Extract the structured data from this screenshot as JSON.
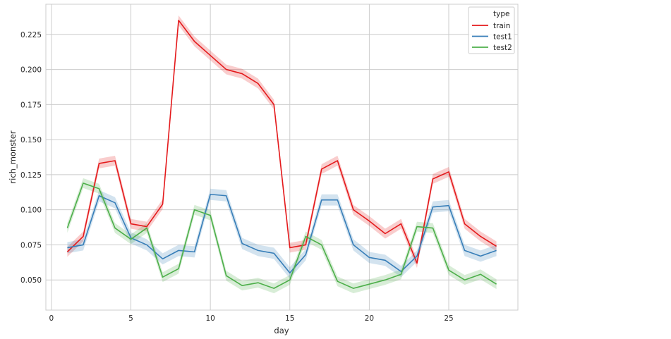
{
  "chart_data": {
    "type": "line",
    "xlabel": "day",
    "ylabel": "rich_monster",
    "xlim": [
      -0.35,
      29.35
    ],
    "ylim": [
      0.0285,
      0.2465
    ],
    "xticks": [
      0,
      5,
      10,
      15,
      20,
      25
    ],
    "yticks": [
      0.05,
      0.075,
      0.1,
      0.125,
      0.15,
      0.175,
      0.2,
      0.225
    ],
    "ytick_labels": [
      "0.050",
      "0.075",
      "0.100",
      "0.125",
      "0.150",
      "0.175",
      "0.200",
      "0.225"
    ],
    "grid": true,
    "legend": {
      "title": "type",
      "placement": "top-right"
    },
    "x": [
      1,
      2,
      3,
      4,
      5,
      6,
      7,
      8,
      9,
      10,
      11,
      12,
      13,
      14,
      15,
      16,
      17,
      18,
      19,
      20,
      21,
      22,
      23,
      24,
      25,
      26,
      27,
      28
    ],
    "series": [
      {
        "name": "train",
        "color": "#e41a1c",
        "values": [
          0.07,
          0.081,
          0.133,
          0.135,
          0.09,
          0.088,
          0.104,
          0.235,
          0.22,
          0.21,
          0.2,
          0.197,
          0.19,
          0.175,
          0.073,
          0.075,
          0.129,
          0.135,
          0.1,
          0.092,
          0.083,
          0.09,
          0.062,
          0.122,
          0.127,
          0.09,
          0.081,
          0.074
        ],
        "ci": 0.0035
      },
      {
        "name": "test1",
        "color": "#377eb8",
        "values": [
          0.073,
          0.075,
          0.11,
          0.105,
          0.08,
          0.075,
          0.065,
          0.071,
          0.07,
          0.111,
          0.11,
          0.076,
          0.071,
          0.069,
          0.055,
          0.068,
          0.107,
          0.107,
          0.075,
          0.066,
          0.064,
          0.056,
          0.067,
          0.102,
          0.103,
          0.071,
          0.067,
          0.071
        ],
        "ci": 0.004
      },
      {
        "name": "test2",
        "color": "#4daf4a",
        "values": [
          0.087,
          0.119,
          0.115,
          0.087,
          0.079,
          0.087,
          0.052,
          0.058,
          0.1,
          0.096,
          0.053,
          0.046,
          0.048,
          0.044,
          0.05,
          0.081,
          0.075,
          0.049,
          0.044,
          0.047,
          0.05,
          0.054,
          0.088,
          0.087,
          0.057,
          0.05,
          0.054,
          0.047
        ],
        "ci": 0.0035
      }
    ]
  }
}
